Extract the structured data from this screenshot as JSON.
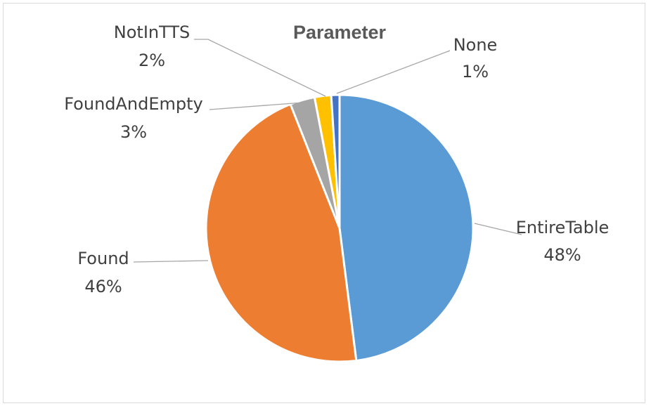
{
  "chart_data": {
    "type": "pie",
    "title": "Parameter",
    "categories": [
      "EntireTable",
      "Found",
      "FoundAndEmpty",
      "NotInTTS",
      "None"
    ],
    "values": [
      48,
      46,
      3,
      2,
      1
    ],
    "value_labels": [
      "48%",
      "46%",
      "3%",
      "2%",
      "1%"
    ],
    "colors": [
      "#5b9bd5",
      "#ed7d31",
      "#a5a5a5",
      "#ffc000",
      "#4472c4"
    ],
    "legend": "none",
    "start_angle_deg": 0,
    "direction": "clockwise"
  }
}
